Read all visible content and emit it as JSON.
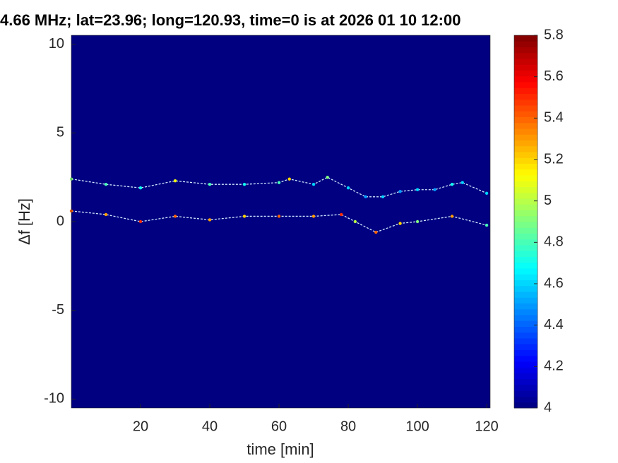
{
  "chart_data": {
    "type": "spectrogram",
    "title": "4.66 MHz;  lat=23.96; long=120.93, time=0 is at 2026 01 10 12:00",
    "xlabel": "time [min]",
    "ylabel": "Δf [Hz]",
    "xlim": [
      0,
      121
    ],
    "ylim": [
      -10.5,
      10.5
    ],
    "xticks": [
      20,
      40,
      60,
      80,
      100,
      120
    ],
    "yticks": [
      -10,
      -5,
      0,
      5,
      10
    ],
    "clim": [
      4,
      5.8
    ],
    "cticks": [
      4,
      4.2,
      4.4,
      4.6,
      4.8,
      5,
      5.2,
      5.4,
      5.6,
      5.8
    ],
    "colormap": "jet",
    "series": [
      {
        "x": [
          0,
          10,
          20,
          30,
          40,
          50,
          60,
          63,
          70,
          74,
          80,
          85,
          90,
          95,
          100,
          105,
          110,
          113,
          120
        ],
        "values": [
          2.4,
          2.1,
          1.9,
          2.3,
          2.1,
          2.1,
          2.2,
          2.4,
          2.1,
          2.5,
          1.9,
          1.4,
          1.4,
          1.7,
          1.8,
          1.8,
          2.1,
          2.2,
          1.6
        ],
        "z": [
          4.9,
          4.8,
          4.7,
          5.1,
          4.8,
          4.7,
          4.8,
          5.2,
          4.6,
          4.9,
          4.6,
          4.5,
          4.6,
          4.5,
          4.6,
          4.5,
          4.7,
          4.6,
          4.6
        ]
      },
      {
        "x": [
          0,
          10,
          20,
          30,
          40,
          50,
          60,
          70,
          78,
          82,
          88,
          95,
          100,
          110,
          120
        ],
        "values": [
          0.6,
          0.4,
          0.0,
          0.3,
          0.1,
          0.3,
          0.3,
          0.3,
          0.4,
          0.0,
          -0.6,
          -0.1,
          0.0,
          0.3,
          -0.2
        ],
        "z": [
          5.4,
          5.3,
          5.5,
          5.4,
          5.3,
          5.2,
          5.4,
          5.3,
          5.5,
          5.0,
          5.4,
          5.2,
          4.9,
          5.3,
          4.8
        ]
      }
    ]
  }
}
